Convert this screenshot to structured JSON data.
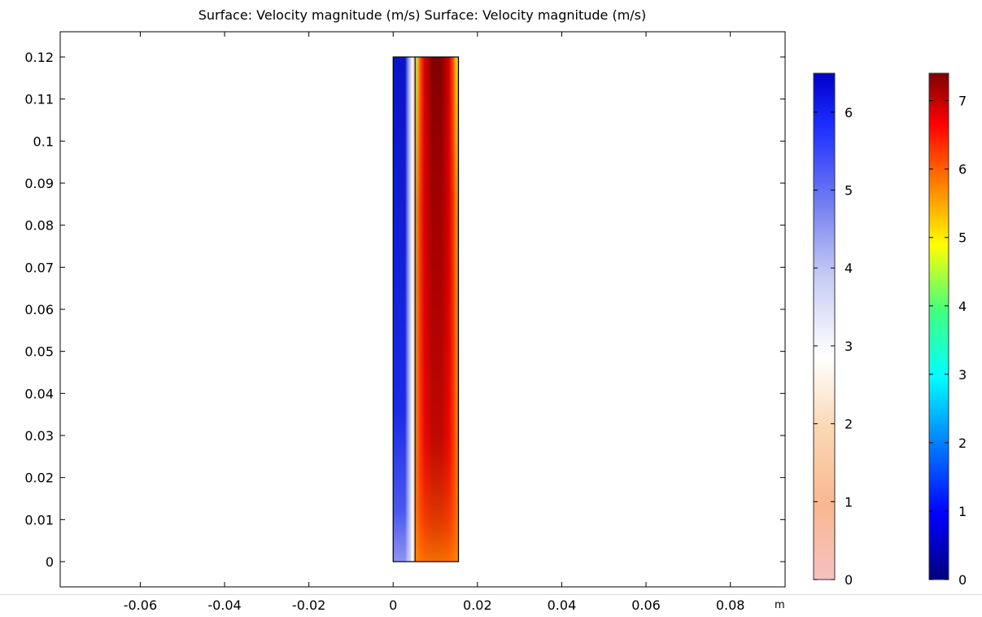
{
  "chart_data": {
    "type": "heatmap",
    "title": "Surface: Velocity magnitude (m/s)  Surface: Velocity magnitude (m/s)",
    "xlabel": "m",
    "ylabel": "",
    "xlim": [
      -0.079,
      0.093
    ],
    "ylim": [
      -0.006,
      0.126
    ],
    "x_ticks": [
      -0.06,
      -0.04,
      -0.02,
      0,
      0.02,
      0.04,
      0.06,
      0.08
    ],
    "x_tick_labels": [
      "-0.06",
      "-0.04",
      "-0.02",
      "0",
      "0.02",
      "0.04",
      "0.06",
      "0.08"
    ],
    "y_ticks": [
      0,
      0.01,
      0.02,
      0.03,
      0.04,
      0.05,
      0.06,
      0.07,
      0.08,
      0.09,
      0.1,
      0.11,
      0.12
    ],
    "y_tick_labels": [
      "0",
      "0.01",
      "0.02",
      "0.03",
      "0.04",
      "0.05",
      "0.06",
      "0.07",
      "0.08",
      "0.09",
      "0.1",
      "0.11",
      "0.12"
    ],
    "grid": false,
    "domains": [
      {
        "name": "Surface: Velocity magnitude (m/s)",
        "x_range": [
          0,
          0.0052
        ],
        "y_range": [
          0,
          0.12
        ],
        "colormap": "blue-white-red (reversed)",
        "colors": [
          "#0a14c8",
          "#2a3cf0",
          "#e6eaf8",
          "#f4a070"
        ]
      },
      {
        "name": "Surface: Velocity magnitude (m/s)",
        "x_range": [
          0.0052,
          0.0155
        ],
        "y_range": [
          0,
          0.12
        ],
        "colormap": "rainbow",
        "colors": [
          "#7a0000",
          "#c80000",
          "#ff4000",
          "#ff9a00",
          "#20e0e0"
        ]
      }
    ],
    "colorbars": [
      {
        "range": [
          0,
          6.5
        ],
        "ticks": [
          0,
          1,
          2,
          3,
          4,
          5,
          6
        ],
        "tick_labels": [
          "0",
          "1",
          "2",
          "3",
          "4",
          "5",
          "6"
        ],
        "stops": [
          "#0000c8",
          "#1a2cff",
          "#6e7af2",
          "#c6cbf4",
          "#ffffff",
          "#fbd8b5",
          "#f9b890",
          "#f6c0c0"
        ]
      },
      {
        "range": [
          0,
          7.4
        ],
        "ticks": [
          0,
          1,
          2,
          3,
          4,
          5,
          6,
          7
        ],
        "tick_labels": [
          "0",
          "1",
          "2",
          "3",
          "4",
          "5",
          "6",
          "7"
        ],
        "stops": [
          "#000080",
          "#0000ff",
          "#0080ff",
          "#00ffff",
          "#40ff80",
          "#ffff00",
          "#ff8000",
          "#ff0000",
          "#800000"
        ]
      }
    ]
  }
}
